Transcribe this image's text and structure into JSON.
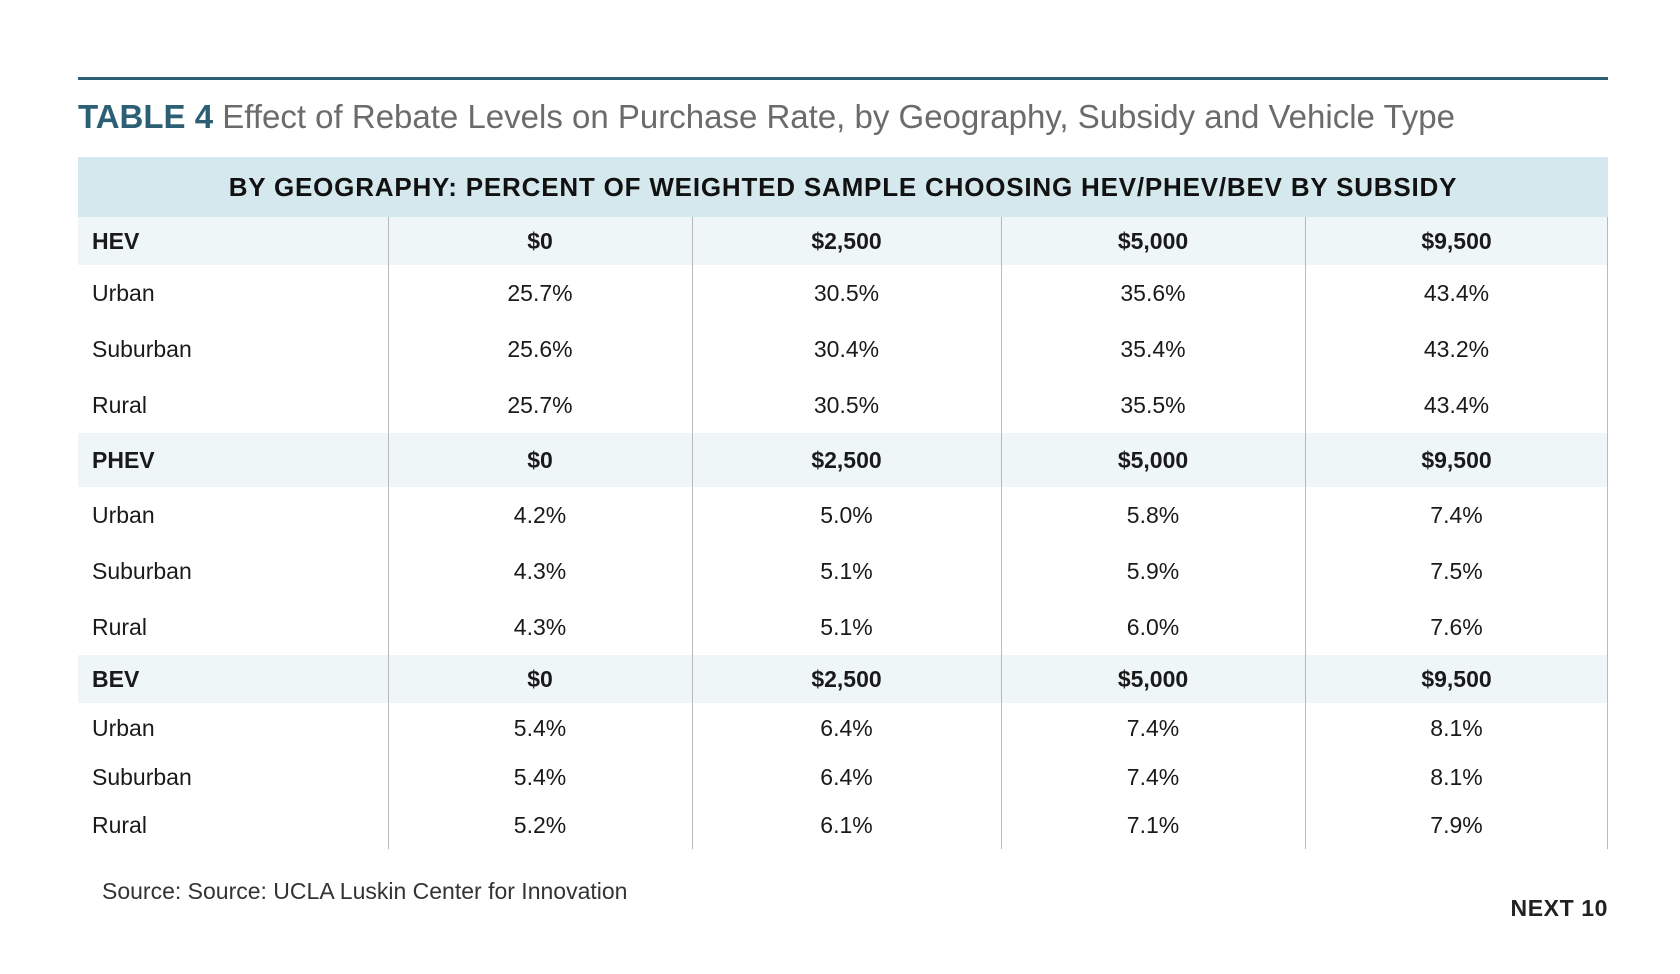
{
  "title": {
    "label": "TABLE 4",
    "text": "Effect of Rebate Levels on Purchase Rate, by Geography, Subsidy and Vehicle Type"
  },
  "band": "BY GEOGRAPHY: PERCENT OF WEIGHTED SAMPLE CHOOSING HEV/PHEV/BEV BY SUBSIDY",
  "groups": [
    {
      "header": [
        "HEV",
        "$0",
        "$2,500",
        "$5,000",
        "$9,500"
      ],
      "rows": [
        [
          "Urban",
          "25.7%",
          "30.5%",
          "35.6%",
          "43.4%"
        ],
        [
          "Suburban",
          "25.6%",
          "30.4%",
          "35.4%",
          "43.2%"
        ],
        [
          "Rural",
          "25.7%",
          "30.5%",
          "35.5%",
          "43.4%"
        ]
      ]
    },
    {
      "header": [
        "PHEV",
        "$0",
        "$2,500",
        "$5,000",
        "$9,500"
      ],
      "rows": [
        [
          "Urban",
          "4.2%",
          "5.0%",
          "5.8%",
          "7.4%"
        ],
        [
          "Suburban",
          "4.3%",
          "5.1%",
          "5.9%",
          "7.5%"
        ],
        [
          "Rural",
          "4.3%",
          "5.1%",
          "6.0%",
          "7.6%"
        ]
      ]
    },
    {
      "header": [
        "BEV",
        "$0",
        "$2,500",
        "$5,000",
        "$9,500"
      ],
      "rows": [
        [
          "Urban",
          "5.4%",
          "6.4%",
          "7.4%",
          "8.1%"
        ],
        [
          "Suburban",
          "5.4%",
          "6.4%",
          "7.4%",
          "8.1%"
        ],
        [
          "Rural",
          "5.2%",
          "6.1%",
          "7.1%",
          "7.9%"
        ]
      ]
    }
  ],
  "source": "Source: Source: UCLA Luskin Center for Innovation",
  "brand": "NEXT 10"
}
